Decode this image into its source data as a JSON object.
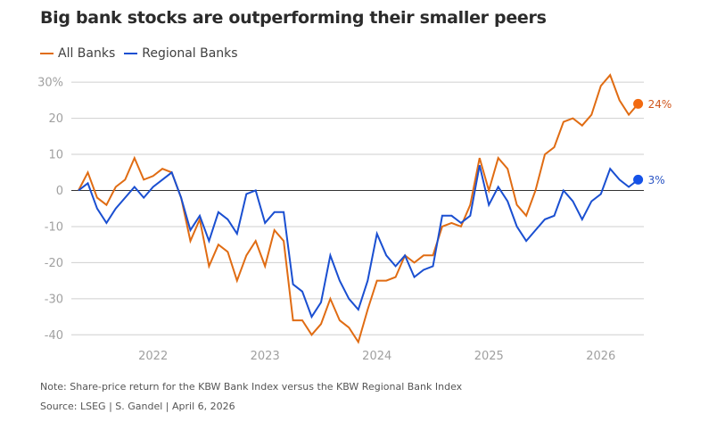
{
  "title": "Big bank stocks are outperforming their smaller peers",
  "legend": [
    {
      "label": "All Banks",
      "color": "#e06c13"
    },
    {
      "label": "Regional Banks",
      "color": "#1a4fd1"
    }
  ],
  "note": "Note: Share-price return for the KBW Bank Index versus the KBW Regional Bank Index",
  "source": "Source: LSEG | S. Gandel | April 6, 2026",
  "chart_data": {
    "type": "line",
    "title": "Big bank stocks are outperforming their smaller peers",
    "xlabel": "",
    "ylabel": "",
    "x_start": "2021-05",
    "x_unit": "month",
    "x_tick_labels": [
      {
        "label": "2022",
        "month_index": 8
      },
      {
        "label": "2023",
        "month_index": 20
      },
      {
        "label": "2024",
        "month_index": 32
      },
      {
        "label": "2025",
        "month_index": 44
      },
      {
        "label": "2026",
        "month_index": 56
      }
    ],
    "y_ticks": [
      30,
      20,
      10,
      0,
      -10,
      -20,
      -30,
      -40
    ],
    "y_tick_labels": [
      "30%",
      "20",
      "10",
      "0",
      "-10",
      "-20",
      "-30",
      "-40"
    ],
    "ylim": [
      -43,
      32
    ],
    "grid": true,
    "legend_position": "top-left",
    "series": [
      {
        "name": "All Banks",
        "color": "#e06c13",
        "end_label": "24%",
        "values": [
          0,
          5,
          -2,
          -4,
          1,
          3,
          9,
          3,
          4,
          6,
          5,
          -2,
          -14,
          -8,
          -21,
          -15,
          -17,
          -25,
          -18,
          -14,
          -21,
          -11,
          -14,
          -36,
          -36,
          -40,
          -37,
          -30,
          -36,
          -38,
          -42,
          -33,
          -25,
          -25,
          -24,
          -18,
          -20,
          -18,
          -18,
          -10,
          -9,
          -10,
          -4,
          9,
          0,
          9,
          6,
          -4,
          -7,
          0,
          10,
          12,
          19,
          20,
          18,
          21,
          29,
          32,
          25,
          21,
          24
        ]
      },
      {
        "name": "Regional Banks",
        "color": "#1a4fd1",
        "end_label": "3%",
        "values": [
          0,
          2,
          -5,
          -9,
          -5,
          -2,
          1,
          -2,
          1,
          3,
          5,
          -2,
          -11,
          -7,
          -14,
          -6,
          -8,
          -12,
          -1,
          0,
          -9,
          -6,
          -6,
          -26,
          -28,
          -35,
          -31,
          -18,
          -25,
          -30,
          -33,
          -25,
          -12,
          -18,
          -21,
          -18,
          -24,
          -22,
          -21,
          -7,
          -7,
          -9,
          -7,
          7,
          -4,
          1,
          -3,
          -10,
          -14,
          -11,
          -8,
          -7,
          0,
          -3,
          -8,
          -3,
          -1,
          6,
          3,
          1,
          3
        ]
      }
    ]
  }
}
